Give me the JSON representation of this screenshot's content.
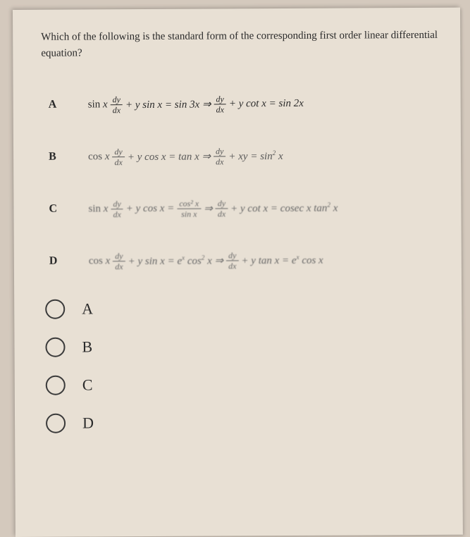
{
  "question": "Which of the following is the standard form of the corresponding first order linear differential equation?",
  "rows": {
    "A": {
      "letter": "A",
      "lhs_fn": "sin",
      "plus1": "+ y sin x = sin 3x ⇒",
      "plus2": "+ y cot x = sin 2x"
    },
    "B": {
      "letter": "B",
      "lhs_fn": "cos",
      "plus1": "+ y cos x = tan x ⇒",
      "plus2": "+ xy = sin",
      "tail_sup": "2",
      "tail": " x"
    },
    "C": {
      "letter": "C",
      "lhs_fn": "sin",
      "plus1": "+ y cos x =",
      "mid_num": "cos² x",
      "mid_den": "sin x",
      "arrow": "⇒",
      "plus2": "+ y cot x = cosec x tan",
      "tail_sup": "2",
      "tail": " x"
    },
    "D": {
      "letter": "D",
      "lhs_fn": "cos",
      "plus1_a": "+ y sin x = e",
      "plus1_b": " cos",
      "plus1_sup": "2",
      "plus1_c": " x ⇒",
      "plus2_a": "+ y tan x = e",
      "plus2_b": " cos x"
    }
  },
  "dy": "dy",
  "dx": "dx",
  "x": "x",
  "expx": "x",
  "answers": {
    "A": "A",
    "B": "B",
    "C": "C",
    "D": "D"
  },
  "colors": {
    "page_bg": "#e8e0d4",
    "outer_bg": "#d4c9bd",
    "text": "#2a2a2a",
    "radio_border": "#3a3a3a"
  }
}
